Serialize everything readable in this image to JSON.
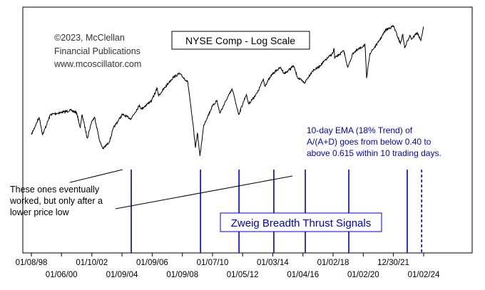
{
  "colors": {
    "background": "#ffffff",
    "plot_background": "#ffffff",
    "border": "#000000",
    "price_line": "#000000",
    "signal_line": "#0000cc",
    "annotation_blue": "#0000cc",
    "pointer_line": "#000000"
  },
  "chart_data": {
    "type": "line",
    "title": "NYSE Comp - Log Scale",
    "copyright_lines": [
      "©2023, McClellan",
      "Financial Publications",
      "www.mcoscillator.com"
    ],
    "yscale": "log",
    "grid": false,
    "legend": "none",
    "x_tick_labels_row1": [
      "01/08/98",
      "01/10/02",
      "01/09/06",
      "01/07/10",
      "01/03/14",
      "01/02/18",
      "12/30/21"
    ],
    "x_tick_labels_row2": [
      "01/06/00",
      "01/09/04",
      "01/09/08",
      "01/05/12",
      "01/04/16",
      "01/02/20",
      "01/02/24"
    ],
    "x_ticks": [
      "1998-01-08",
      "2000-01-06",
      "2002-01-10",
      "2004-01-09",
      "2006-01-09",
      "2008-01-09",
      "2010-01-07",
      "2012-01-05",
      "2014-01-03",
      "2016-01-04",
      "2018-01-02",
      "2020-01-02",
      "2021-12-30",
      "2024-01-02"
    ],
    "xlim": [
      "1998-01-08",
      "2024-01-02"
    ],
    "series": [
      {
        "x": [
          "1998-01-08",
          "1998-07-15",
          "1998-10-08",
          "1999-04-15",
          "1999-10-15",
          "2000-03-20",
          "2000-09-01",
          "2001-01-10",
          "2001-04-04",
          "2001-05-20",
          "2001-09-21",
          "2002-01-04",
          "2002-03-19",
          "2002-07-23",
          "2002-10-09",
          "2003-03-11",
          "2003-06-15",
          "2004-01-15",
          "2004-08-12",
          "2005-03-07",
          "2005-04-20",
          "2005-12-30",
          "2006-05-10",
          "2006-06-13",
          "2006-12-29",
          "2007-05-31",
          "2007-10-31",
          "2008-05-19",
          "2008-10-10",
          "2008-11-20",
          "2009-01-06",
          "2009-03-09",
          "2009-06-12",
          "2009-12-31",
          "2010-04-23",
          "2010-07-02",
          "2010-12-31",
          "2011-04-29",
          "2011-10-03",
          "2012-04-02",
          "2012-06-01",
          "2012-12-31",
          "2013-05-21",
          "2013-06-24",
          "2013-12-31",
          "2014-07-03",
          "2014-10-15",
          "2015-05-21",
          "2015-08-25",
          "2016-02-11",
          "2016-08-15",
          "2016-12-30",
          "2017-12-29",
          "2018-01-26",
          "2018-02-08",
          "2018-09-20",
          "2018-12-24",
          "2019-04-30",
          "2019-12-31",
          "2020-02-12",
          "2020-03-23",
          "2020-06-08",
          "2020-12-31",
          "2021-06-30",
          "2022-01-04",
          "2022-06-16",
          "2022-08-16",
          "2022-09-30",
          "2023-02-02",
          "2023-03-13",
          "2023-07-31",
          "2023-10-27",
          "2023-12-29"
        ],
        "values": [
          5300,
          6400,
          5300,
          6600,
          6700,
          6800,
          6900,
          6700,
          5700,
          6600,
          5100,
          6100,
          6400,
          4900,
          4550,
          4900,
          5700,
          6600,
          6300,
          7300,
          7000,
          7700,
          8800,
          8100,
          9100,
          9900,
          10300,
          9400,
          5500,
          4600,
          5400,
          4200,
          5900,
          7200,
          7700,
          6700,
          7900,
          8700,
          6600,
          8200,
          7400,
          8400,
          9700,
          9000,
          10300,
          11000,
          10300,
          11200,
          9900,
          9300,
          10600,
          11000,
          12900,
          13600,
          12200,
          13200,
          11000,
          12900,
          13900,
          14200,
          9800,
          12800,
          14500,
          16600,
          17300,
          14300,
          15800,
          13600,
          15700,
          15000,
          16100,
          14700,
          17200
        ]
      }
    ],
    "signals": [
      {
        "date": "2004-08-20",
        "style": "solid"
      },
      {
        "date": "2009-03-23",
        "style": "solid"
      },
      {
        "date": "2011-10-10",
        "style": "solid"
      },
      {
        "date": "2014-01-30",
        "style": "solid"
      },
      {
        "date": "2016-03-01",
        "style": "solid"
      },
      {
        "date": "2019-01-17",
        "style": "solid"
      },
      {
        "date": "2022-11-30",
        "style": "solid"
      },
      {
        "date": "2023-11-14",
        "style": "dashed"
      }
    ],
    "annotations": {
      "definition_lines": [
        "10-day EMA (18% Trend) of",
        "A/(A+D) goes from below 0.40 to",
        "above 0.615 within 10 trading days."
      ],
      "eventual_lines": [
        "These ones eventually",
        "worked, but only after a",
        "lower price low"
      ],
      "signals_label": "Zweig Breadth Thrust Signals"
    }
  }
}
